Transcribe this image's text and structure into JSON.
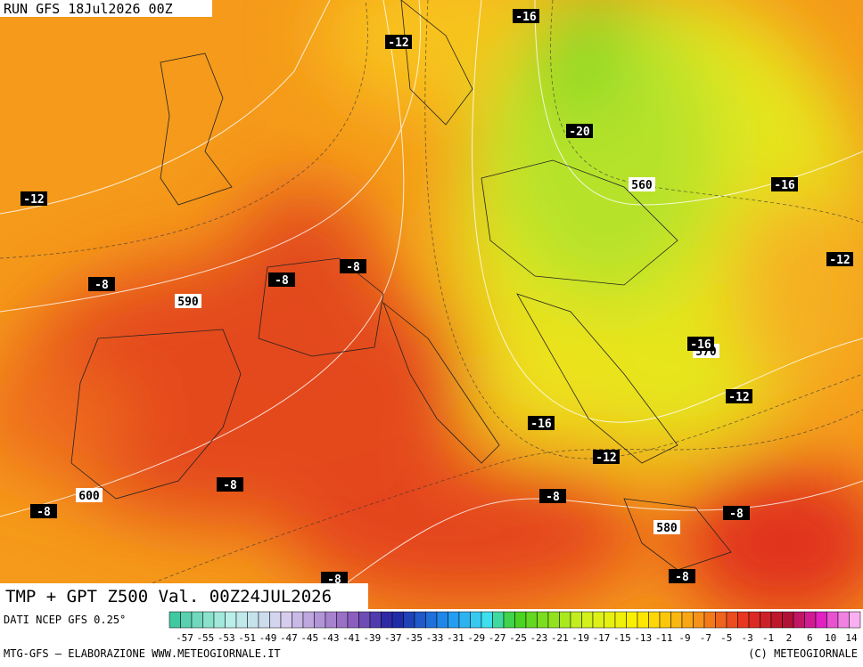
{
  "header": {
    "run": "RUN GFS 18Jul2026 00Z"
  },
  "map": {
    "contour_labels": [
      "-16",
      "-12",
      "-20",
      "-12",
      "560",
      "-16",
      "-12",
      "-8",
      "-8",
      "-8",
      "590",
      "570",
      "-16",
      "-12",
      "-16",
      "-12",
      "600",
      "-8",
      "-8",
      "-8",
      "-8",
      "580",
      "-8",
      "-8"
    ]
  },
  "footer": {
    "title": "TMP + GPT Z500 Val. 00Z24JUL2026",
    "source": "DATI NCEP GFS 0.25°",
    "credit": "MTG-GFS — ELABORAZIONE WWW.METEOGIORNALE.IT",
    "copyright": "(C) METEOGIORNALE"
  },
  "legend": {
    "labels": [
      "-57",
      "-55",
      "-53",
      "-51",
      "-49",
      "-47",
      "-45",
      "-43",
      "-41",
      "-39",
      "-37",
      "-35",
      "-33",
      "-31",
      "-29",
      "-27",
      "-25",
      "-23",
      "-21",
      "-19",
      "-17",
      "-15",
      "-13",
      "-11",
      "-9",
      "-7",
      "-5",
      "-3",
      "-1",
      "2",
      "6",
      "10",
      "14"
    ]
  }
}
